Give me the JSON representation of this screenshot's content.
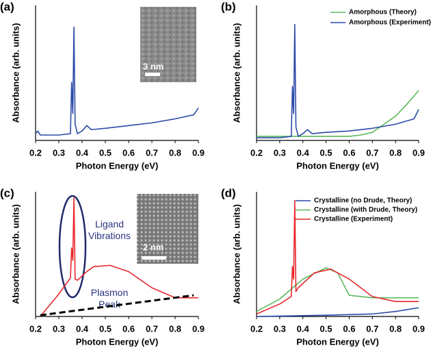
{
  "chart_data": [
    {
      "type": "line",
      "panel_label": "(a)",
      "xlabel": "Photon Energy (eV)",
      "ylabel": "Absorbance (arb. units)",
      "xlim": [
        0.2,
        0.9
      ],
      "xticks": [
        0.2,
        0.3,
        0.4,
        0.5,
        0.6,
        0.7,
        0.8,
        0.9
      ],
      "ylim": [
        0,
        1
      ],
      "inset_scale": "3 nm",
      "series": [
        {
          "color": "#2b4aa8",
          "x": [
            0.2,
            0.21,
            0.22,
            0.3,
            0.35,
            0.355,
            0.36,
            0.365,
            0.37,
            0.38,
            0.4,
            0.42,
            0.44,
            0.5,
            0.6,
            0.7,
            0.8,
            0.88,
            0.9
          ],
          "values": [
            0.05,
            0.07,
            0.04,
            0.04,
            0.05,
            0.43,
            0.2,
            0.84,
            0.12,
            0.05,
            0.07,
            0.11,
            0.08,
            0.09,
            0.11,
            0.13,
            0.16,
            0.19,
            0.24
          ]
        }
      ]
    },
    {
      "type": "line",
      "panel_label": "(b)",
      "xlabel": "Photon Energy (eV)",
      "ylabel": "Absorbance (arb. units)",
      "xlim": [
        0.2,
        0.9
      ],
      "xticks": [
        0.2,
        0.3,
        0.4,
        0.5,
        0.6,
        0.7,
        0.8,
        0.9
      ],
      "ylim": [
        0,
        1
      ],
      "series": [
        {
          "name": "Amorphous (Theory)",
          "color": "#5cb85c",
          "x": [
            0.2,
            0.3,
            0.4,
            0.5,
            0.6,
            0.65,
            0.7,
            0.75,
            0.8,
            0.85,
            0.9
          ],
          "values": [
            0.03,
            0.03,
            0.03,
            0.03,
            0.03,
            0.04,
            0.06,
            0.12,
            0.18,
            0.27,
            0.37
          ]
        },
        {
          "name": "Amorphous (Experiment)",
          "color": "#2b4aa8",
          "x": [
            0.2,
            0.3,
            0.35,
            0.355,
            0.36,
            0.365,
            0.37,
            0.38,
            0.4,
            0.42,
            0.44,
            0.5,
            0.6,
            0.7,
            0.8,
            0.88,
            0.9
          ],
          "values": [
            0.02,
            0.02,
            0.03,
            0.4,
            0.2,
            0.86,
            0.1,
            0.03,
            0.05,
            0.08,
            0.05,
            0.06,
            0.07,
            0.09,
            0.12,
            0.16,
            0.23
          ]
        }
      ]
    },
    {
      "type": "line",
      "panel_label": "(c)",
      "xlabel": "Photon Energy (eV)",
      "ylabel": "Absorbance (arb. units)",
      "xlim": [
        0.2,
        0.9
      ],
      "xticks": [
        0.2,
        0.3,
        0.4,
        0.5,
        0.6,
        0.7,
        0.8,
        0.9
      ],
      "ylim": [
        0,
        1
      ],
      "inset_scale": "2 nm",
      "annotations": [
        "Ligand Vibrations",
        "Plasmon Peak"
      ],
      "series": [
        {
          "color": "#e8262b",
          "x": [
            0.22,
            0.3,
            0.35,
            0.355,
            0.36,
            0.365,
            0.37,
            0.38,
            0.42,
            0.45,
            0.52,
            0.6,
            0.7,
            0.8,
            0.88,
            0.9
          ],
          "values": [
            0.0,
            0.18,
            0.31,
            0.55,
            0.45,
            0.95,
            0.3,
            0.29,
            0.36,
            0.4,
            0.41,
            0.36,
            0.23,
            0.15,
            0.15,
            0.15
          ]
        },
        {
          "color": "#000000",
          "dashed": true,
          "x": [
            0.22,
            0.88
          ],
          "values": [
            0.01,
            0.17
          ]
        }
      ]
    },
    {
      "type": "line",
      "panel_label": "(d)",
      "xlabel": "Photon Energy (eV)",
      "ylabel": "Absorbance (arb. units)",
      "xlim": [
        0.2,
        0.9
      ],
      "xticks": [
        0.2,
        0.3,
        0.4,
        0.5,
        0.6,
        0.7,
        0.8,
        0.9
      ],
      "ylim": [
        0,
        1
      ],
      "series": [
        {
          "name": "Crystalline (no Drude, Theory)",
          "color": "#2b4aa8",
          "x": [
            0.2,
            0.5,
            0.7,
            0.8,
            0.9
          ],
          "values": [
            0.0,
            0.01,
            0.02,
            0.04,
            0.07
          ]
        },
        {
          "name": "Crystalline (with Drude, Theory)",
          "color": "#5cb85c",
          "x": [
            0.2,
            0.3,
            0.4,
            0.5,
            0.55,
            0.6,
            0.7,
            0.9
          ],
          "values": [
            0.04,
            0.14,
            0.3,
            0.39,
            0.35,
            0.17,
            0.15,
            0.15
          ]
        },
        {
          "name": "Crystalline (Experiment)",
          "color": "#e8262b",
          "x": [
            0.2,
            0.3,
            0.35,
            0.355,
            0.36,
            0.365,
            0.37,
            0.38,
            0.45,
            0.52,
            0.6,
            0.7,
            0.8,
            0.9
          ],
          "values": [
            0.02,
            0.1,
            0.16,
            0.4,
            0.3,
            0.93,
            0.2,
            0.23,
            0.35,
            0.38,
            0.3,
            0.16,
            0.12,
            0.12
          ]
        }
      ]
    }
  ]
}
